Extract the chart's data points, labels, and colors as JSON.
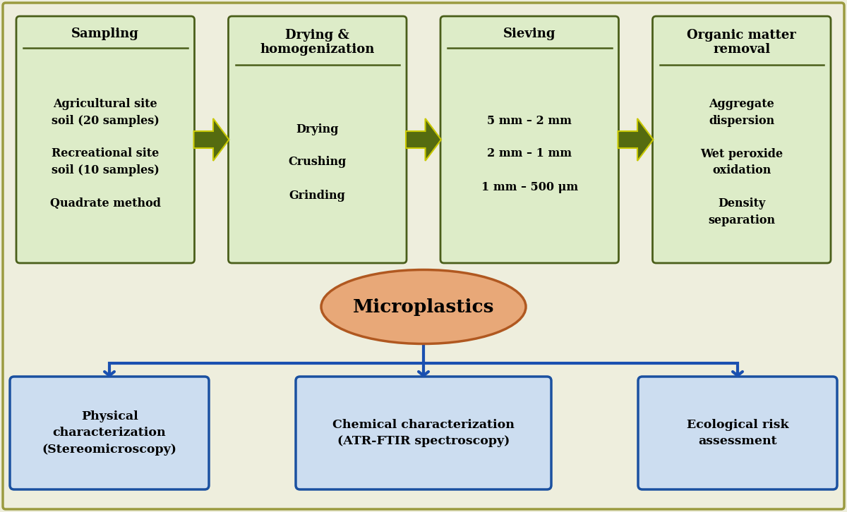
{
  "fig_width": 12.0,
  "fig_height": 7.26,
  "bg_color": "#eeeedd",
  "outer_border_color": "#9a9a40",
  "green_box_fill": "#ddecc8",
  "green_box_border": "#4a5e1a",
  "blue_box_fill": "#ccddf0",
  "blue_box_border": "#1a50a0",
  "ellipse_fill": "#e8a878",
  "ellipse_border": "#b05820",
  "arrow_fill": "#556b10",
  "arrow_edge": "#c8c800",
  "blue_arrow_color": "#1a50b0",
  "top_boxes": [
    {
      "title": "Sampling",
      "body": "Agricultural site\nsoil (20 samples)\n\nRecreational site\nsoil (10 samples)\n\nQuadrate method"
    },
    {
      "title": "Drying &\nhomogenization",
      "body": "Drying\n\nCrushing\n\nGrinding"
    },
    {
      "title": "Sieving",
      "body": "5 mm – 2 mm\n\n2 mm – 1 mm\n\n1 mm – 500 μm"
    },
    {
      "title": "Organic matter\nremoval",
      "body": "Aggregate\ndispersion\n\nWet peroxide\noxidation\n\nDensity\nseparation"
    }
  ],
  "bottom_boxes": [
    "Physical\ncharacterization\n(Stereomicroscopy)",
    "Chemical characterization\n(ATR-FTIR spectroscopy)",
    "Ecological risk\nassessment"
  ],
  "ellipse_text": "Microplastics"
}
